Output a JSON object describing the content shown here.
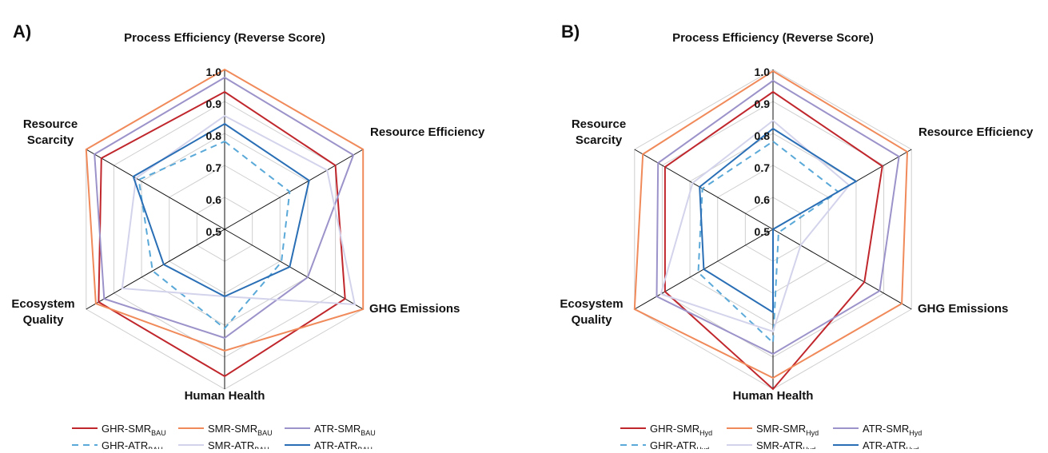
{
  "chart_data": [
    {
      "type": "radar",
      "panel": "A)",
      "title": "Process Efficiency (Reverse Score)",
      "axes": [
        [
          "Process Efficiency (Reverse Score)"
        ],
        [
          "Resource Efficiency"
        ],
        [
          "GHG Emissions"
        ],
        [
          "Human Health"
        ],
        [
          "Ecosystem",
          "Quality"
        ],
        [
          "Resource",
          "Scarcity"
        ]
      ],
      "rlim": [
        0.5,
        1.0
      ],
      "rticks": [
        0.5,
        0.6,
        0.7,
        0.8,
        0.9,
        {
          "value": 1,
          "label": "1.0"
        }
      ],
      "series": [
        {
          "name": "GHR-SMR",
          "sub": "BAU",
          "color": "#c0272d",
          "dash": false,
          "values": [
            0.93,
            0.9,
            0.935,
            0.96,
            0.955,
            0.945
          ]
        },
        {
          "name": "SMR-SMR",
          "sub": "BAU",
          "color": "#f08a5a",
          "dash": false,
          "values": [
            1.0,
            1.0,
            1.0,
            0.88,
            0.965,
            1.0
          ]
        },
        {
          "name": "ATR-SMR",
          "sub": "BAU",
          "color": "#9b93c9",
          "dash": false,
          "values": [
            0.975,
            0.965,
            0.8,
            0.84,
            0.935,
            0.97
          ]
        },
        {
          "name": "GHR-ATR",
          "sub": "BAU",
          "color": "#5aa9d8",
          "dash": true,
          "values": [
            0.775,
            0.735,
            0.705,
            0.81,
            0.76,
            0.81
          ]
        },
        {
          "name": "SMR-ATR",
          "sub": "BAU",
          "color": "#d3d3ec",
          "dash": false,
          "values": [
            0.855,
            0.87,
            0.97,
            0.71,
            0.87,
            0.82
          ]
        },
        {
          "name": "ATR-ATR",
          "sub": "BAU",
          "color": "#2a6fb5",
          "dash": false,
          "values": [
            0.83,
            0.805,
            0.735,
            0.71,
            0.72,
            0.83
          ]
        }
      ]
    },
    {
      "type": "radar",
      "panel": "B)",
      "title": "Process Efficiency (Reverse Score)",
      "axes": [
        [
          "Process Efficiency (Reverse Score)"
        ],
        [
          "Resource Efficiency"
        ],
        [
          "GHG Emissions"
        ],
        [
          "Human Health"
        ],
        [
          "Ecosystem",
          "Quality"
        ],
        [
          "Resource",
          "Scarcity"
        ]
      ],
      "rlim": [
        0.5,
        1.0
      ],
      "rticks": [
        0.5,
        0.6,
        0.7,
        0.8,
        0.9,
        {
          "value": 1,
          "label": "1.0"
        }
      ],
      "series": [
        {
          "name": "GHR-SMR",
          "sub": "Hyd",
          "color": "#c0272d",
          "dash": false,
          "values": [
            0.93,
            0.895,
            0.83,
            1.0,
            0.89,
            0.89
          ]
        },
        {
          "name": "SMR-SMR",
          "sub": "Hyd",
          "color": "#f08a5a",
          "dash": false,
          "values": [
            0.995,
            0.985,
            0.965,
            0.965,
            1.0,
            0.97
          ]
        },
        {
          "name": "ATR-SMR",
          "sub": "Hyd",
          "color": "#9b93c9",
          "dash": false,
          "values": [
            0.965,
            0.955,
            0.885,
            0.89,
            0.92,
            0.915
          ]
        },
        {
          "name": "GHR-ATR",
          "sub": "Hyd",
          "color": "#5aa9d8",
          "dash": true,
          "values": [
            0.775,
            0.735,
            0.52,
            0.855,
            0.77,
            0.755
          ]
        },
        {
          "name": "SMR-ATR",
          "sub": "Hyd",
          "color": "#d3d3ec",
          "dash": false,
          "values": [
            0.84,
            0.775,
            0.6,
            0.82,
            0.905,
            0.79
          ]
        },
        {
          "name": "ATR-ATR",
          "sub": "Hyd",
          "color": "#2a6fb5",
          "dash": false,
          "values": [
            0.815,
            0.8,
            0.5,
            0.76,
            0.75,
            0.765
          ]
        }
      ]
    }
  ]
}
